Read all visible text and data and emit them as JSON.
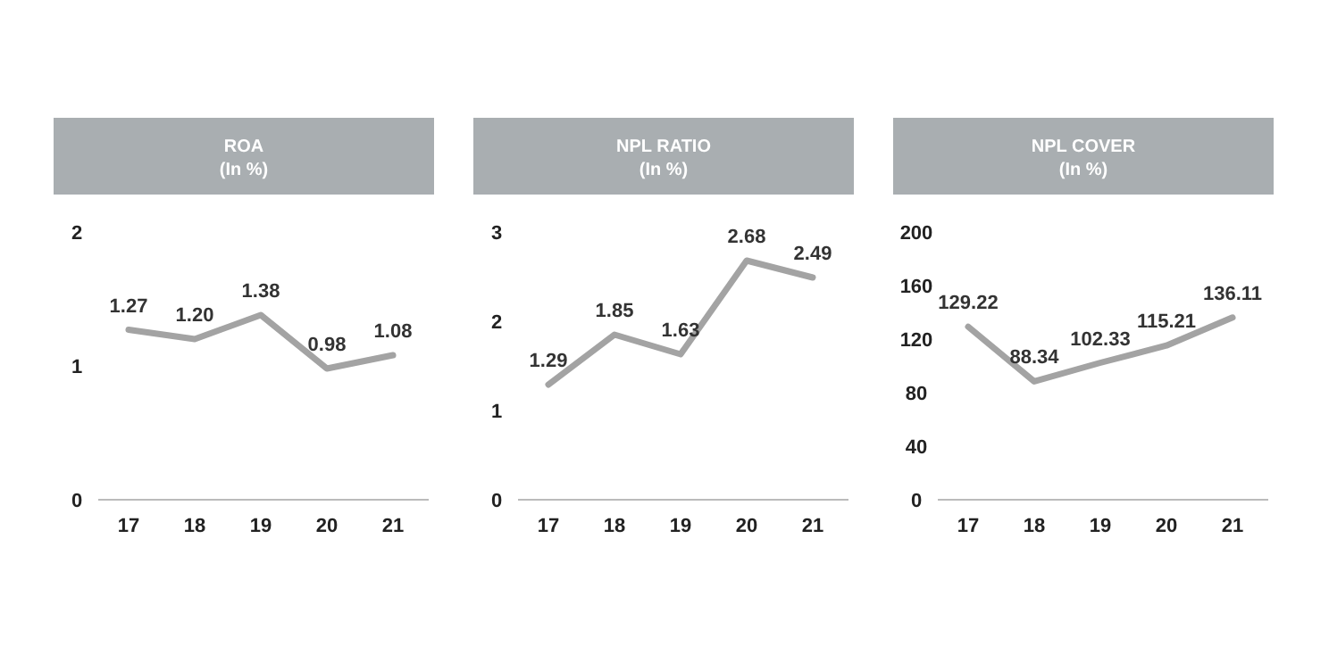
{
  "chart_data": [
    {
      "type": "line",
      "title": "ROA",
      "subtitle": "(In %)",
      "categories": [
        "17",
        "18",
        "19",
        "20",
        "21"
      ],
      "values": [
        1.27,
        1.2,
        1.38,
        0.98,
        1.08
      ],
      "value_labels": [
        "1.27",
        "1.20",
        "1.38",
        "0.98",
        "1.08"
      ],
      "color": "#a3a3a3",
      "ylim": [
        0,
        2
      ],
      "yticks": [
        0,
        1,
        2
      ],
      "grid": false
    },
    {
      "type": "line",
      "title": "NPL RATIO",
      "subtitle": "(In %)",
      "categories": [
        "17",
        "18",
        "19",
        "20",
        "21"
      ],
      "values": [
        1.29,
        1.85,
        1.63,
        2.68,
        2.49
      ],
      "value_labels": [
        "1.29",
        "1.85",
        "1.63",
        "2.68",
        "2.49"
      ],
      "color": "#a3a3a3",
      "ylim": [
        0,
        3
      ],
      "yticks": [
        0,
        1,
        2,
        3
      ],
      "grid": false
    },
    {
      "type": "line",
      "title": "NPL COVER",
      "subtitle": "(In %)",
      "categories": [
        "17",
        "18",
        "19",
        "20",
        "21"
      ],
      "values": [
        129.22,
        88.34,
        102.33,
        115.21,
        136.11
      ],
      "value_labels": [
        "129.22",
        "88.34",
        "102.33",
        "115.21",
        "136.11"
      ],
      "color": "#a3a3a3",
      "ylim": [
        0,
        200
      ],
      "yticks": [
        0,
        40,
        80,
        120,
        160,
        200
      ],
      "grid": false
    }
  ]
}
